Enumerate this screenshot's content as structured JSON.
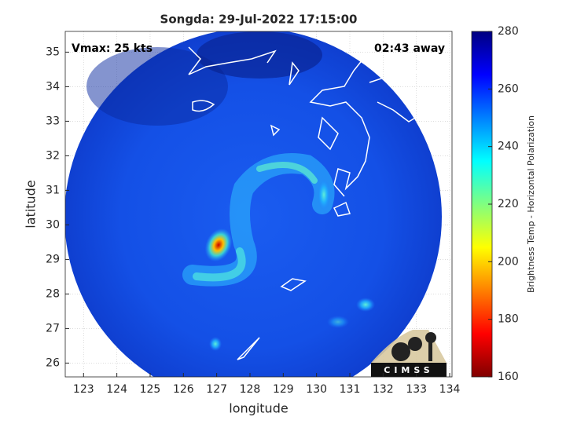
{
  "chart_data": {
    "type": "map",
    "title": "Songda: 29-Jul-2022 17:15:00",
    "annotations": [
      "Vmax: 25 kts",
      "02:43 away"
    ],
    "x_label": "longitude",
    "y_label": "latitude",
    "xlim": [
      122.45,
      134.07
    ],
    "ylim": [
      25.6,
      35.6
    ],
    "xticks": [
      123,
      124,
      125,
      126,
      127,
      128,
      129,
      130,
      131,
      132,
      133,
      134
    ],
    "yticks": [
      26,
      27,
      28,
      29,
      30,
      31,
      32,
      33,
      34,
      35
    ],
    "grid": true,
    "colorbar": {
      "label": "Brightness Temp - Horizontal Polarization",
      "colormap": "jet",
      "lim": [
        160,
        280
      ],
      "ticks": [
        160,
        180,
        200,
        220,
        240,
        260,
        280
      ]
    },
    "logo": "CIMSS"
  }
}
